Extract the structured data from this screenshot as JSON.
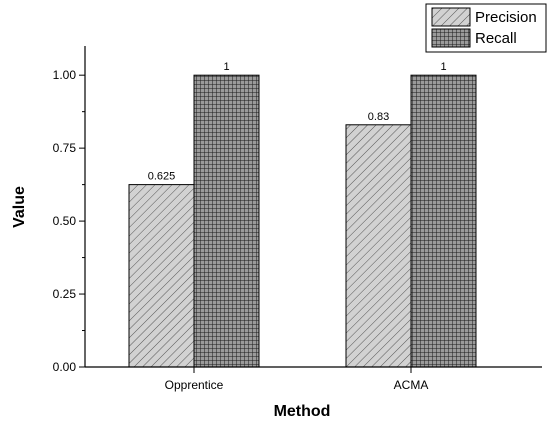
{
  "chart_data": {
    "type": "bar",
    "categories": [
      "Opprentice",
      "ACMA"
    ],
    "series": [
      {
        "name": "Precision",
        "values": [
          0.625,
          0.83
        ],
        "labels": [
          "0.625",
          "0.83"
        ],
        "pattern": "diagonal-hatch",
        "color": "#c8c8c8"
      },
      {
        "name": "Recall",
        "values": [
          1,
          1
        ],
        "labels": [
          "1",
          "1"
        ],
        "pattern": "grid",
        "color": "#8c8c8c"
      }
    ],
    "xlabel": "Method",
    "ylabel": "Value",
    "ylim": [
      0,
      1.1
    ],
    "yticks": [
      0.0,
      0.25,
      0.5,
      0.75,
      1.0
    ],
    "ytick_labels": [
      "0.00",
      "0.25",
      "0.50",
      "0.75",
      "1.00"
    ],
    "grid": false,
    "legend_position": "top-right"
  }
}
